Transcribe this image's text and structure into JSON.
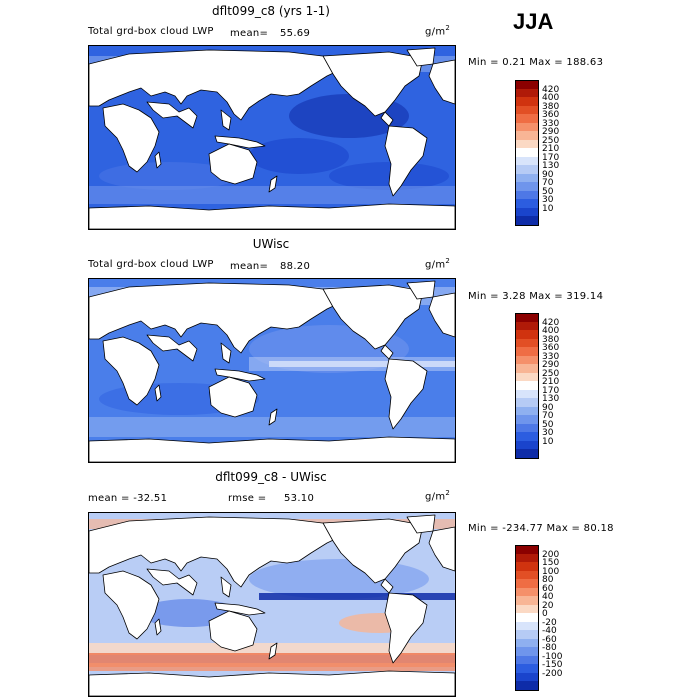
{
  "season": "JJA",
  "panels": [
    {
      "title": "dflt099_c8 (yrs 1-1)",
      "left_label": "Total grd-box cloud LWP",
      "stat_label": "mean=",
      "stat_value": "55.69",
      "units": "g/m",
      "units_exp": "2",
      "minmax": "Min =    0.21 Max = 188.63",
      "ocean_base": "#2f63e0",
      "colorbar": {
        "labels": [
          "420",
          "400",
          "380",
          "360",
          "330",
          "290",
          "250",
          "210",
          "170",
          "130",
          "90",
          "70",
          "50",
          "30",
          "10"
        ],
        "colors": [
          "#8b0000",
          "#b01a08",
          "#d0330f",
          "#e24f25",
          "#ef6d44",
          "#f5906a",
          "#f8b595",
          "#fbd9c4",
          "#ffffff",
          "#d8e4fb",
          "#b6cbf5",
          "#8fb0f0",
          "#6f95ec",
          "#4e78e6",
          "#2c5de0",
          "#1a44cc",
          "#0e2ca8"
        ]
      }
    },
    {
      "title": "UWisc",
      "left_label": "Total grd-box cloud LWP",
      "stat_label": "mean=",
      "stat_value": "88.20",
      "units": "g/m",
      "units_exp": "2",
      "minmax": "Min =    3.28 Max = 319.14",
      "ocean_base": "#4a7eea",
      "colorbar": {
        "labels": [
          "420",
          "400",
          "380",
          "360",
          "330",
          "290",
          "250",
          "210",
          "170",
          "130",
          "90",
          "70",
          "50",
          "30",
          "10"
        ],
        "colors": [
          "#8b0000",
          "#b01a08",
          "#d0330f",
          "#e24f25",
          "#ef6d44",
          "#f5906a",
          "#f8b595",
          "#fbd9c4",
          "#ffffff",
          "#d8e4fb",
          "#b6cbf5",
          "#8fb0f0",
          "#6f95ec",
          "#4e78e6",
          "#2c5de0",
          "#1a44cc",
          "#0e2ca8"
        ]
      }
    },
    {
      "title": "dflt099_c8 - UWisc",
      "left_label": "mean = -32.51",
      "stat_label": "rmse =",
      "stat_value": "53.10",
      "units": "g/m",
      "units_exp": "2",
      "minmax": "Min = -234.77 Max =  80.18",
      "ocean_base": "#b9cdf5",
      "colorbar": {
        "labels": [
          "200",
          "150",
          "100",
          "80",
          "60",
          "40",
          "20",
          "0",
          "-20",
          "-40",
          "-60",
          "-80",
          "-100",
          "-150",
          "-200"
        ],
        "colors": [
          "#8b0000",
          "#b01a08",
          "#d0330f",
          "#e24f25",
          "#ef6d44",
          "#f5906a",
          "#f8b595",
          "#fbd9c4",
          "#ffffff",
          "#d8e4fb",
          "#b6cbf5",
          "#8fb0f0",
          "#6f95ec",
          "#4e78e6",
          "#2c5de0",
          "#1a44cc",
          "#0e2ca8"
        ]
      }
    }
  ]
}
